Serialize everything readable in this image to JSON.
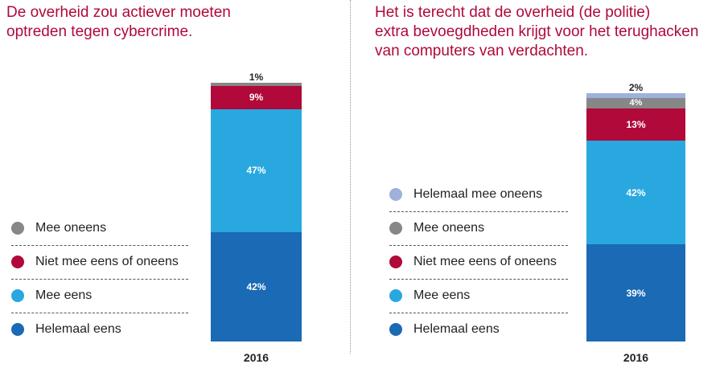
{
  "colors": {
    "helemaal_eens": "#1a6ab5",
    "mee_eens": "#29a8e0",
    "niet_mee_eens_of_oneens": "#b0093a",
    "mee_oneens": "#878787",
    "helemaal_mee_oneens": "#9fb0dc"
  },
  "chart_data": [
    {
      "type": "bar",
      "stacked": true,
      "title": "De overheid zou actiever moeten\noptreden tegen cybercrime.",
      "categories": [
        "2016"
      ],
      "legend": [
        {
          "name": "Mee oneens",
          "color": "#878787"
        },
        {
          "name": "Niet mee eens of oneens",
          "color": "#b0093a"
        },
        {
          "name": "Mee eens",
          "color": "#29a8e0"
        },
        {
          "name": "Helemaal eens",
          "color": "#1a6ab5"
        }
      ],
      "series": [
        {
          "name": "Helemaal eens",
          "values": [
            42
          ],
          "label": "42%",
          "color": "#1a6ab5"
        },
        {
          "name": "Mee eens",
          "values": [
            47
          ],
          "label": "47%",
          "color": "#29a8e0"
        },
        {
          "name": "Niet mee eens of oneens",
          "values": [
            9
          ],
          "label": "9%",
          "color": "#b0093a"
        },
        {
          "name": "Mee oneens",
          "values": [
            1
          ],
          "label": "1%",
          "color": "#878787"
        }
      ],
      "legend_placement": "left"
    },
    {
      "type": "bar",
      "stacked": true,
      "title": "Het is terecht dat de overheid (de politie)\nextra bevoegdheden krijgt voor het terughacken\nvan computers van verdachten.",
      "categories": [
        "2016"
      ],
      "legend": [
        {
          "name": "Helemaal mee oneens",
          "color": "#9fb0dc"
        },
        {
          "name": "Mee oneens",
          "color": "#878787"
        },
        {
          "name": "Niet mee eens of oneens",
          "color": "#b0093a"
        },
        {
          "name": "Mee eens",
          "color": "#29a8e0"
        },
        {
          "name": "Helemaal eens",
          "color": "#1a6ab5"
        }
      ],
      "series": [
        {
          "name": "Helemaal eens",
          "values": [
            39
          ],
          "label": "39%",
          "color": "#1a6ab5"
        },
        {
          "name": "Mee eens",
          "values": [
            42
          ],
          "label": "42%",
          "color": "#29a8e0"
        },
        {
          "name": "Niet mee eens of oneens",
          "values": [
            13
          ],
          "label": "13%",
          "color": "#b0093a"
        },
        {
          "name": "Mee oneens",
          "values": [
            4
          ],
          "label": "4%",
          "color": "#878787"
        },
        {
          "name": "Helemaal mee oneens",
          "values": [
            2
          ],
          "label": "2%",
          "color": "#9fb0dc"
        }
      ],
      "legend_placement": "left"
    }
  ]
}
